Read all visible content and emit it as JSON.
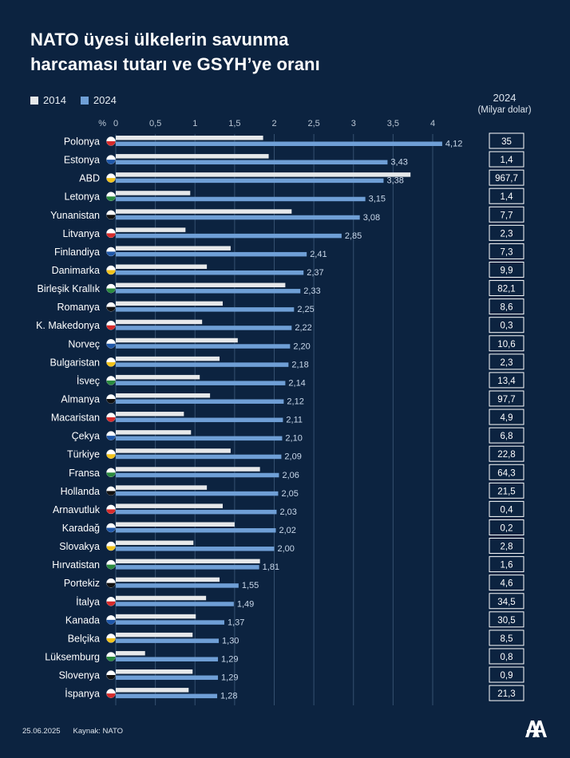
{
  "title_lines": [
    "NATO üyesi ülkelerin savunma",
    "harcaması tutarı ve GSYH’ye oranı"
  ],
  "footer": {
    "date": "25.06.2025",
    "source": "Kaynak: NATO"
  },
  "value_column": {
    "year": "2024",
    "unit": "(Milyar dolar)"
  },
  "colors": {
    "background": "#0c2340",
    "series_2014": "#e6e8ea",
    "series_2024": "#6f9fd6",
    "grid": "#34506f"
  },
  "chart_data": {
    "type": "bar",
    "orientation": "horizontal",
    "x_unit_label": "%",
    "xlim": [
      0,
      4
    ],
    "x_ticks": [
      "0",
      "0,5",
      "1",
      "1,5",
      "2",
      "2,5",
      "3",
      "3,5",
      "4"
    ],
    "categories": [
      "Polonya",
      "Estonya",
      "ABD",
      "Letonya",
      "Yunanistan",
      "Litvanya",
      "Finlandiya",
      "Danimarka",
      "Birleşik Krallık",
      "Romanya",
      "K. Makedonya",
      "Norveç",
      "Bulgaristan",
      "İsveç",
      "Almanya",
      "Macaristan",
      "Çekya",
      "Türkiye",
      "Fransa",
      "Hollanda",
      "Arnavutluk",
      "Karadağ",
      "Slovakya",
      "Hırvatistan",
      "Portekiz",
      "İtalya",
      "Kanada",
      "Belçika",
      "Lüksemburg",
      "Slovenya",
      "İspanya"
    ],
    "series": [
      {
        "name": "2014",
        "color": "#e6e8ea",
        "values": [
          1.86,
          1.93,
          3.72,
          0.94,
          2.22,
          0.88,
          1.45,
          1.15,
          2.14,
          1.35,
          1.09,
          1.54,
          1.31,
          1.06,
          1.19,
          0.86,
          0.95,
          1.45,
          1.82,
          1.15,
          1.35,
          1.5,
          0.98,
          1.82,
          1.31,
          1.14,
          1.01,
          0.97,
          0.37,
          0.97,
          0.92
        ]
      },
      {
        "name": "2024",
        "color": "#6f9fd6",
        "values": [
          4.12,
          3.43,
          3.38,
          3.15,
          3.08,
          2.85,
          2.41,
          2.37,
          2.33,
          2.25,
          2.22,
          2.2,
          2.18,
          2.14,
          2.12,
          2.11,
          2.1,
          2.09,
          2.06,
          2.05,
          2.03,
          2.02,
          2.0,
          1.81,
          1.55,
          1.49,
          1.37,
          1.3,
          1.29,
          1.29,
          1.28
        ]
      }
    ],
    "value_labels_2024": [
      "4,12",
      "3,43",
      "3,38",
      "3,15",
      "3,08",
      "2,85",
      "2,41",
      "2,37",
      "2,33",
      "2,25",
      "2,22",
      "2,20",
      "2,18",
      "2,14",
      "2,12",
      "2,11",
      "2,10",
      "2,09",
      "2,06",
      "2,05",
      "2,03",
      "2,02",
      "2,00",
      "1,81",
      "1,55",
      "1,49",
      "1,37",
      "1,30",
      "1,29",
      "1,29",
      "1,28"
    ],
    "spending_2024": [
      "35",
      "1,4",
      "967,7",
      "1,4",
      "7,7",
      "2,3",
      "7,3",
      "9,9",
      "82,1",
      "8,6",
      "0,3",
      "10,6",
      "2,3",
      "13,4",
      "97,7",
      "4,9",
      "6,8",
      "22,8",
      "64,3",
      "21,5",
      "0,4",
      "0,2",
      "2,8",
      "1,6",
      "4,6",
      "34,5",
      "30,5",
      "8,5",
      "0,8",
      "0,9",
      "21,3"
    ],
    "flag_icons": [
      "flag-poland-icon",
      "flag-estonia-icon",
      "flag-usa-icon",
      "flag-latvia-icon",
      "flag-greece-icon",
      "flag-lithuania-icon",
      "flag-finland-icon",
      "flag-denmark-icon",
      "flag-uk-icon",
      "flag-romania-icon",
      "flag-north-macedonia-icon",
      "flag-norway-icon",
      "flag-bulgaria-icon",
      "flag-sweden-icon",
      "flag-germany-icon",
      "flag-hungary-icon",
      "flag-czechia-icon",
      "flag-turkiye-icon",
      "flag-france-icon",
      "flag-netherlands-icon",
      "flag-albania-icon",
      "flag-montenegro-icon",
      "flag-slovakia-icon",
      "flag-croatia-icon",
      "flag-portugal-icon",
      "flag-italy-icon",
      "flag-canada-icon",
      "flag-belgium-icon",
      "flag-luxembourg-icon",
      "flag-slovenia-icon",
      "flag-spain-icon"
    ]
  }
}
